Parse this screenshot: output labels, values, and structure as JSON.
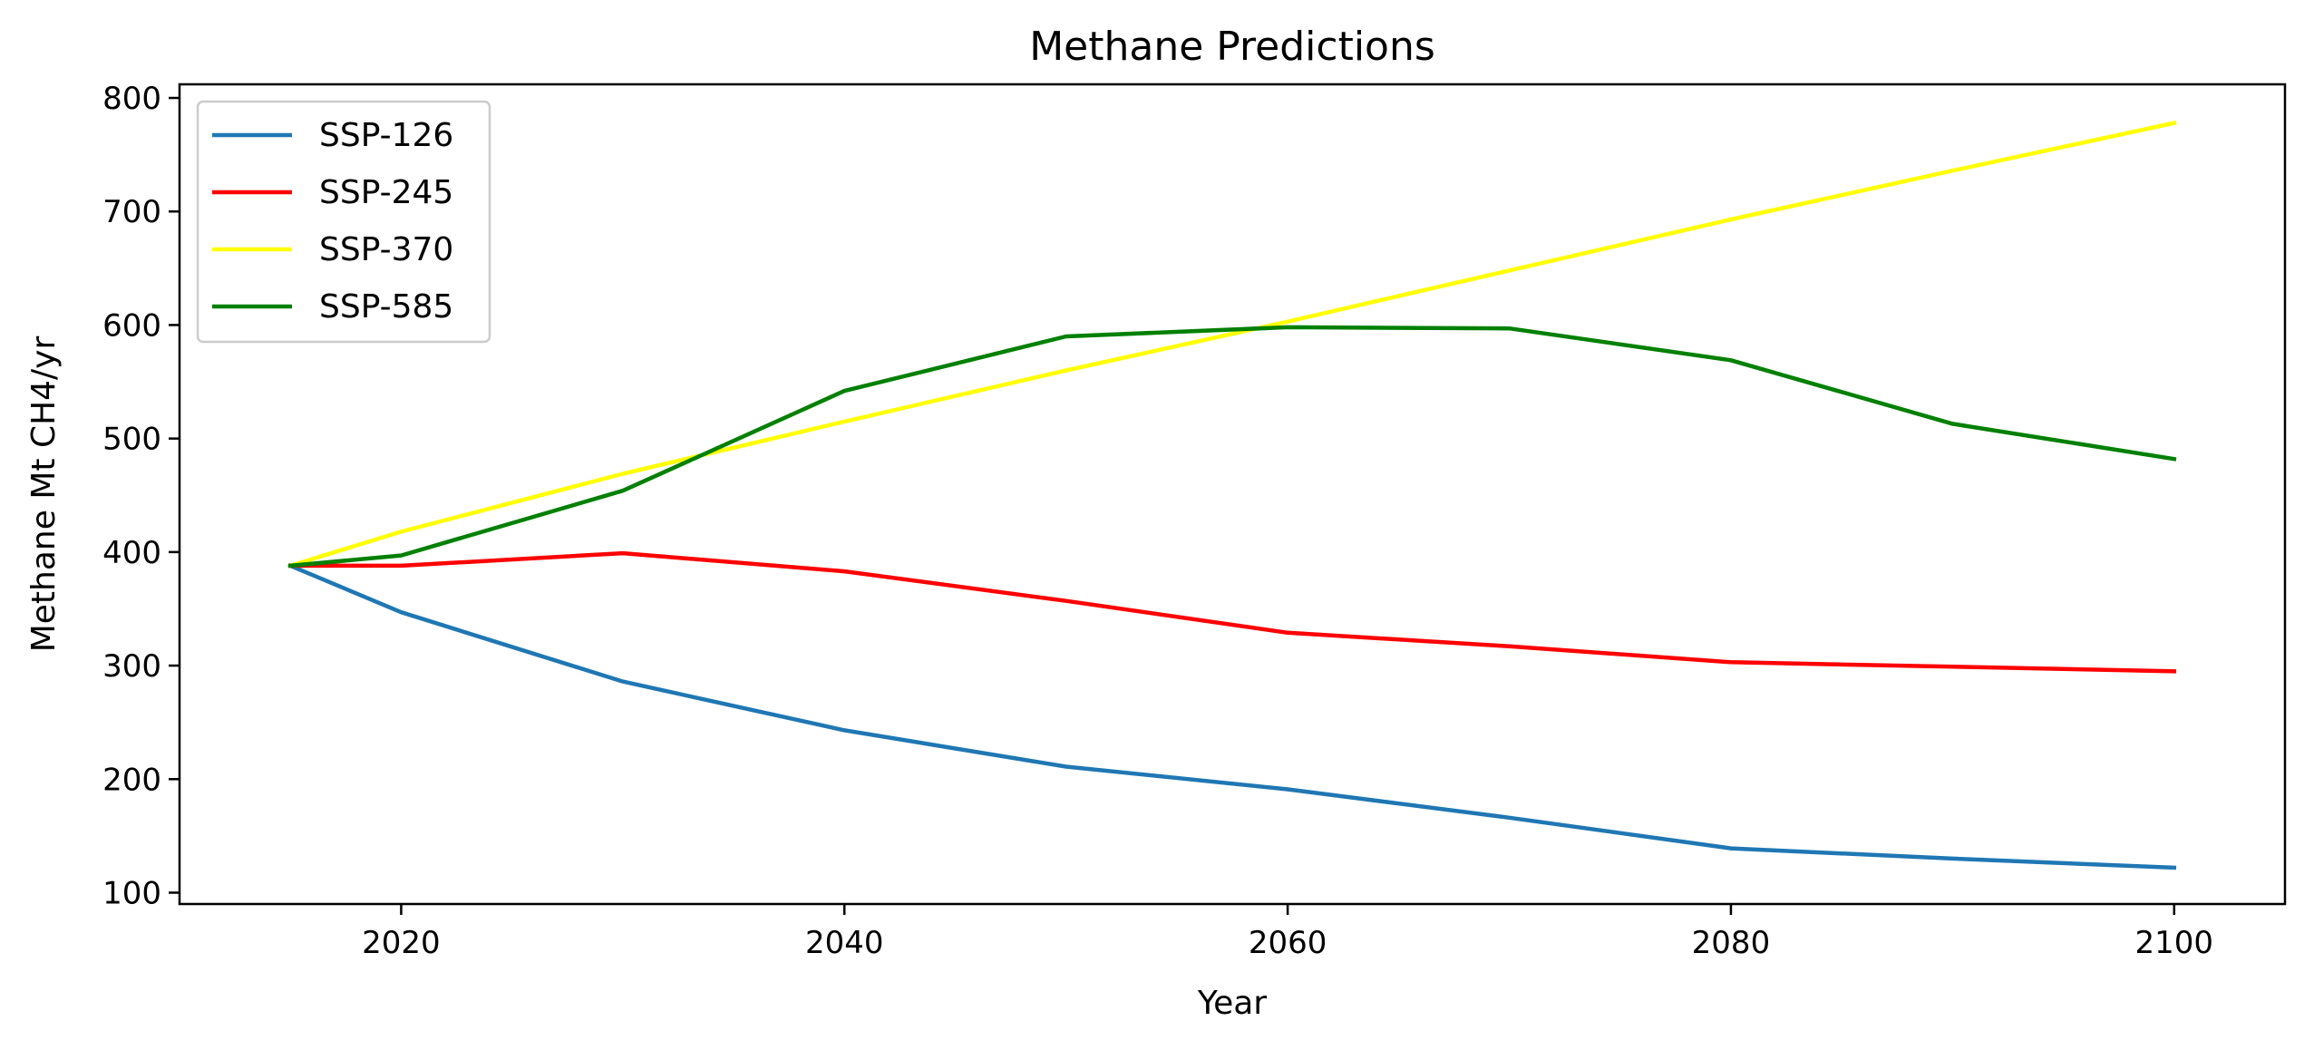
{
  "chart_data": {
    "type": "line",
    "title": "Methane Predictions",
    "xlabel": "Year",
    "ylabel": "Methane Mt CH4/yr",
    "xlim": [
      2010,
      2105
    ],
    "ylim": [
      90,
      812
    ],
    "xticks": [
      2020,
      2040,
      2060,
      2080,
      2100
    ],
    "yticks": [
      100,
      200,
      300,
      400,
      500,
      600,
      700,
      800
    ],
    "grid": false,
    "legend_position": "upper-left",
    "series": [
      {
        "name": "SSP-126",
        "color": "#1f77b4",
        "x": [
          2015,
          2020,
          2030,
          2040,
          2050,
          2060,
          2070,
          2080,
          2090,
          2100
        ],
        "y": [
          388,
          347,
          286,
          243,
          211,
          191,
          166,
          139,
          130,
          122
        ]
      },
      {
        "name": "SSP-245",
        "color": "#ff0000",
        "x": [
          2015,
          2020,
          2030,
          2040,
          2050,
          2060,
          2070,
          2080,
          2090,
          2100
        ],
        "y": [
          388,
          388,
          399,
          383,
          357,
          329,
          317,
          303,
          299,
          295
        ]
      },
      {
        "name": "SSP-370",
        "color": "#ffff00",
        "x": [
          2015,
          2020,
          2030,
          2040,
          2050,
          2060,
          2070,
          2080,
          2090,
          2100
        ],
        "y": [
          388,
          418,
          469,
          515,
          560,
          603,
          648,
          693,
          736,
          778
        ]
      },
      {
        "name": "SSP-585",
        "color": "#008000",
        "x": [
          2015,
          2020,
          2030,
          2040,
          2050,
          2060,
          2070,
          2080,
          2090,
          2100
        ],
        "y": [
          388,
          397,
          454,
          542,
          590,
          598,
          597,
          569,
          513,
          482
        ]
      }
    ]
  }
}
